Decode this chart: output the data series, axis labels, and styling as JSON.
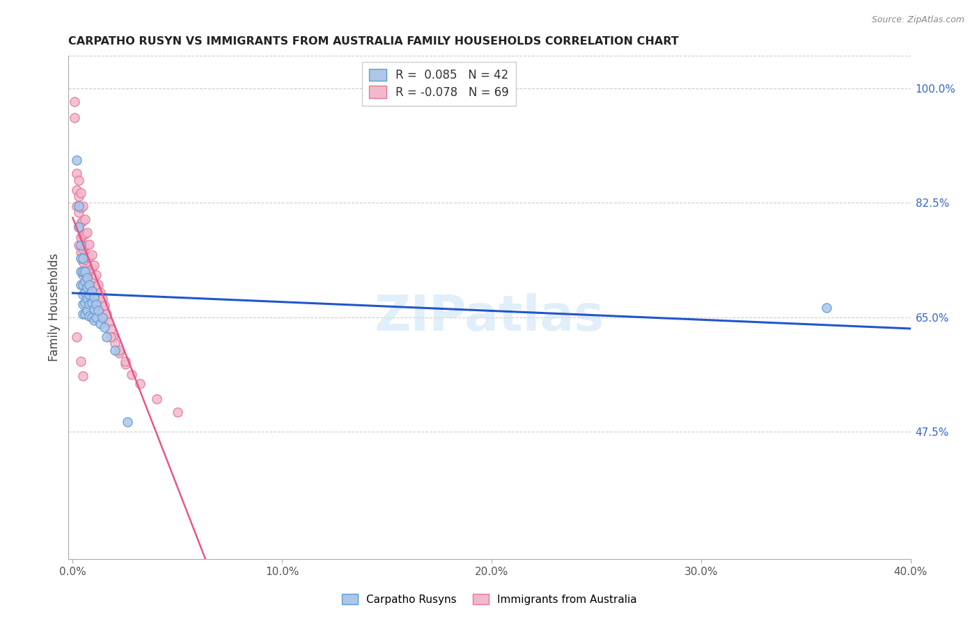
{
  "title": "CARPATHO RUSYN VS IMMIGRANTS FROM AUSTRALIA FAMILY HOUSEHOLDS CORRELATION CHART",
  "source": "Source: ZipAtlas.com",
  "ylabel": "Family Households",
  "xlim": [
    -0.002,
    0.4
  ],
  "ylim": [
    0.28,
    1.05
  ],
  "ytick_labels": [
    "47.5%",
    "65.0%",
    "82.5%",
    "100.0%"
  ],
  "ytick_values": [
    0.475,
    0.65,
    0.825,
    1.0
  ],
  "xtick_labels": [
    "0.0%",
    "10.0%",
    "20.0%",
    "30.0%",
    "40.0%"
  ],
  "xtick_values": [
    0.0,
    0.1,
    0.2,
    0.3,
    0.4
  ],
  "series1_color": "#aec6e8",
  "series1_edge": "#5b9bd5",
  "series2_color": "#f4b8cc",
  "series2_edge": "#e07898",
  "line1_color": "#2255cc",
  "line2_color": "#e8558a",
  "R1": 0.085,
  "N1": 42,
  "R2": -0.078,
  "N2": 69,
  "watermark": "ZIPatlas",
  "series1_x": [
    0.002,
    0.003,
    0.003,
    0.004,
    0.004,
    0.004,
    0.004,
    0.005,
    0.005,
    0.005,
    0.005,
    0.005,
    0.005,
    0.006,
    0.006,
    0.006,
    0.006,
    0.006,
    0.007,
    0.007,
    0.007,
    0.007,
    0.008,
    0.008,
    0.008,
    0.008,
    0.009,
    0.009,
    0.009,
    0.01,
    0.01,
    0.01,
    0.011,
    0.011,
    0.012,
    0.013,
    0.014,
    0.015,
    0.016,
    0.02,
    0.026,
    0.36
  ],
  "series1_y": [
    0.89,
    0.82,
    0.788,
    0.76,
    0.74,
    0.72,
    0.7,
    0.74,
    0.72,
    0.7,
    0.685,
    0.67,
    0.655,
    0.72,
    0.705,
    0.688,
    0.672,
    0.655,
    0.71,
    0.695,
    0.678,
    0.66,
    0.7,
    0.685,
    0.67,
    0.652,
    0.69,
    0.672,
    0.65,
    0.68,
    0.662,
    0.645,
    0.67,
    0.65,
    0.66,
    0.64,
    0.65,
    0.635,
    0.62,
    0.6,
    0.49,
    0.665
  ],
  "series2_x": [
    0.001,
    0.001,
    0.002,
    0.002,
    0.002,
    0.003,
    0.003,
    0.003,
    0.003,
    0.003,
    0.004,
    0.004,
    0.004,
    0.004,
    0.004,
    0.005,
    0.005,
    0.005,
    0.005,
    0.005,
    0.005,
    0.006,
    0.006,
    0.006,
    0.006,
    0.007,
    0.007,
    0.007,
    0.007,
    0.008,
    0.008,
    0.008,
    0.008,
    0.008,
    0.009,
    0.009,
    0.009,
    0.01,
    0.01,
    0.01,
    0.011,
    0.011,
    0.011,
    0.012,
    0.012,
    0.012,
    0.013,
    0.013,
    0.014,
    0.014,
    0.015,
    0.015,
    0.016,
    0.017,
    0.018,
    0.019,
    0.02,
    0.022,
    0.025,
    0.028,
    0.032,
    0.04,
    0.05,
    0.018,
    0.022,
    0.025,
    0.002,
    0.004,
    0.005
  ],
  "series2_y": [
    0.98,
    0.955,
    0.87,
    0.845,
    0.82,
    0.86,
    0.835,
    0.81,
    0.788,
    0.76,
    0.84,
    0.818,
    0.795,
    0.772,
    0.75,
    0.82,
    0.798,
    0.775,
    0.755,
    0.735,
    0.715,
    0.8,
    0.778,
    0.758,
    0.738,
    0.78,
    0.76,
    0.742,
    0.72,
    0.762,
    0.742,
    0.722,
    0.705,
    0.685,
    0.745,
    0.725,
    0.706,
    0.73,
    0.71,
    0.692,
    0.715,
    0.696,
    0.678,
    0.7,
    0.682,
    0.662,
    0.688,
    0.668,
    0.678,
    0.658,
    0.668,
    0.648,
    0.655,
    0.642,
    0.632,
    0.62,
    0.61,
    0.595,
    0.578,
    0.562,
    0.548,
    0.525,
    0.505,
    0.62,
    0.6,
    0.582,
    0.62,
    0.582,
    0.56
  ]
}
